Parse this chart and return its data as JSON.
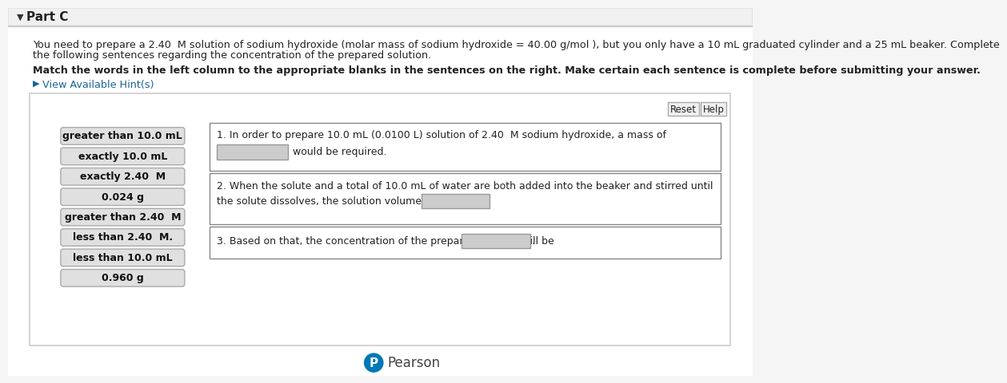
{
  "title": "Part C",
  "bg_color": "#f5f5f5",
  "panel_bg": "#ffffff",
  "intro_line1": "You need to prepare a 2.40  M solution of sodium hydroxide (molar mass of sodium hydroxide = 40.00 g/mol ), but you only have a 10 mL graduated cylinder and a 25 mL beaker. Complete",
  "intro_line2": "the following sentences regarding the concentration of the prepared solution.",
  "bold_text": "Match the words in the left column to the appropriate blanks in the sentences on the right. Make certain each sentence is complete before submitting your answer.",
  "hint_text": "View Available Hint(s)",
  "left_items": [
    "greater than 10.0 mL",
    "exactly 10.0 mL",
    "exactly 2.40  M",
    "0.024 g",
    "greater than 2.40  M",
    "less than 2.40  M.",
    "less than 10.0 mL",
    "0.960 g"
  ],
  "sentence1": "1. In order to prepare 10.0 mL (0.0100 L) solution of 2.40  M sodium hydroxide, a mass of",
  "sentence1b": "would be required.",
  "sentence2a": "2. When the solute and a total of 10.0 mL of water are both added into the beaker and stirred until",
  "sentence2b": "the solute dissolves, the solution volume will be",
  "sentence3": "3. Based on that, the concentration of the prepared solution will be",
  "pearson_text": "Pearson",
  "reset_text": "Reset",
  "help_text": "Help",
  "item_box_color": "#e0e0e0",
  "item_box_border": "#aaaaaa",
  "answer_box_color": "#cccccc",
  "answer_box_border": "#999999",
  "sentence_box_border": "#888888",
  "hint_color": "#1a6496",
  "pearson_blue": "#0077b6",
  "button_border": "#aaaaaa",
  "button_bg": "#f0f0f0",
  "top_bar_bg": "#f0f0f0",
  "top_bar_border": "#dddddd"
}
